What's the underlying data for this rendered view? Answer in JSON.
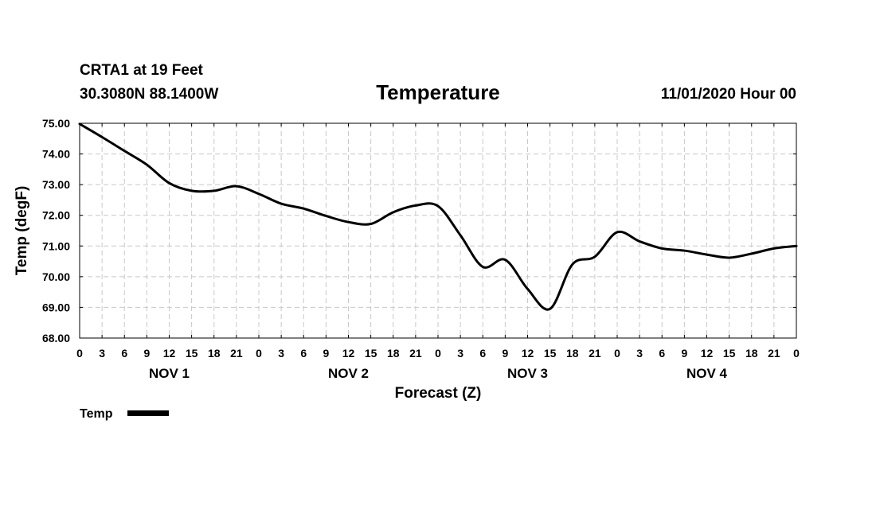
{
  "header": {
    "station": "CRTA1 at 19 Feet",
    "location": "30.3080N 88.1400W",
    "title": "Temperature",
    "datetime": "11/01/2020 Hour 00"
  },
  "chart_data": {
    "type": "line",
    "title": "Temperature",
    "xlabel": "Forecast (Z)",
    "ylabel": "Temp (degF)",
    "xlim": [
      0,
      96
    ],
    "ylim": [
      68,
      75
    ],
    "y_ticks": [
      "68.00",
      "69.00",
      "70.00",
      "71.00",
      "72.00",
      "73.00",
      "74.00",
      "75.00"
    ],
    "x_tick_labels": [
      "0",
      "3",
      "6",
      "9",
      "12",
      "15",
      "18",
      "21",
      "0",
      "3",
      "6",
      "9",
      "12",
      "15",
      "18",
      "21",
      "0",
      "3",
      "6",
      "9",
      "12",
      "15",
      "18",
      "21",
      "0",
      "3",
      "6",
      "9",
      "12",
      "15",
      "18",
      "21",
      "0"
    ],
    "day_labels": [
      {
        "label": "NOV 1",
        "hour": 12
      },
      {
        "label": "NOV 2",
        "hour": 36
      },
      {
        "label": "NOV 3",
        "hour": 60
      },
      {
        "label": "NOV 4",
        "hour": 84
      }
    ],
    "grid": true,
    "legend_position": "bottom-left",
    "line_color": "#000000",
    "series": [
      {
        "name": "Temp",
        "x": [
          0,
          3,
          6,
          9,
          12,
          15,
          18,
          21,
          24,
          27,
          30,
          33,
          36,
          39,
          42,
          45,
          48,
          51,
          54,
          57,
          60,
          63,
          66,
          69,
          72,
          75,
          78,
          81,
          84,
          87,
          90,
          93,
          96
        ],
        "y": [
          74.98,
          74.55,
          74.1,
          73.65,
          73.05,
          72.8,
          72.8,
          72.95,
          72.7,
          72.38,
          72.22,
          71.98,
          71.78,
          71.72,
          72.1,
          72.32,
          72.3,
          71.35,
          70.32,
          70.55,
          69.6,
          68.95,
          70.4,
          70.65,
          71.45,
          71.15,
          70.92,
          70.85,
          70.72,
          70.62,
          70.75,
          70.92,
          71.0
        ]
      }
    ]
  }
}
